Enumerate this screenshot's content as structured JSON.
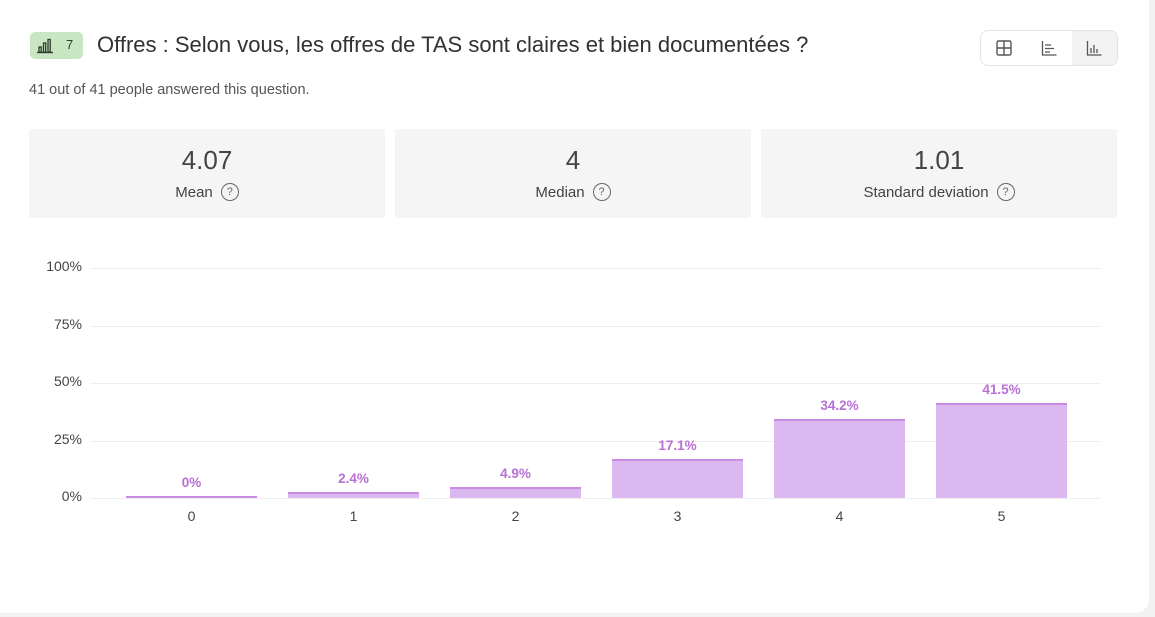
{
  "question": {
    "number": "7",
    "type_icon": "bar-chart-icon",
    "title": "Offres : Selon vous, les offres de TAS sont claires et bien documentées ?",
    "response_summary": "41 out of 41 people answered this question."
  },
  "view_toggle": {
    "options": [
      {
        "icon": "table-grid-icon",
        "active": false
      },
      {
        "icon": "horizontal-bar-chart-icon",
        "active": false
      },
      {
        "icon": "vertical-bar-chart-icon",
        "active": true
      }
    ]
  },
  "stats": [
    {
      "value": "4.07",
      "label": "Mean",
      "icon": "help-circle-icon"
    },
    {
      "value": "4",
      "label": "Median",
      "icon": "help-circle-icon"
    },
    {
      "value": "1.01",
      "label": "Standard deviation",
      "icon": "help-circle-icon"
    }
  ],
  "colors": {
    "bar_fill": "#dcb8f0",
    "bar_top": "#c98ce0",
    "bar_label": "#b86fd6",
    "badge_bg": "#c9e6c3"
  },
  "chart_data": {
    "type": "bar",
    "title": "",
    "xlabel": "",
    "ylabel": "",
    "categories": [
      "0",
      "1",
      "2",
      "3",
      "4",
      "5"
    ],
    "values": [
      0,
      2.4,
      4.9,
      17.1,
      34.2,
      41.5
    ],
    "value_labels": [
      "0%",
      "2.4%",
      "4.9%",
      "17.1%",
      "34.2%",
      "41.5%"
    ],
    "ylim": [
      0,
      100
    ],
    "yticks": [
      "0%",
      "25%",
      "50%",
      "75%",
      "100%"
    ],
    "grid": true,
    "legend": null
  }
}
